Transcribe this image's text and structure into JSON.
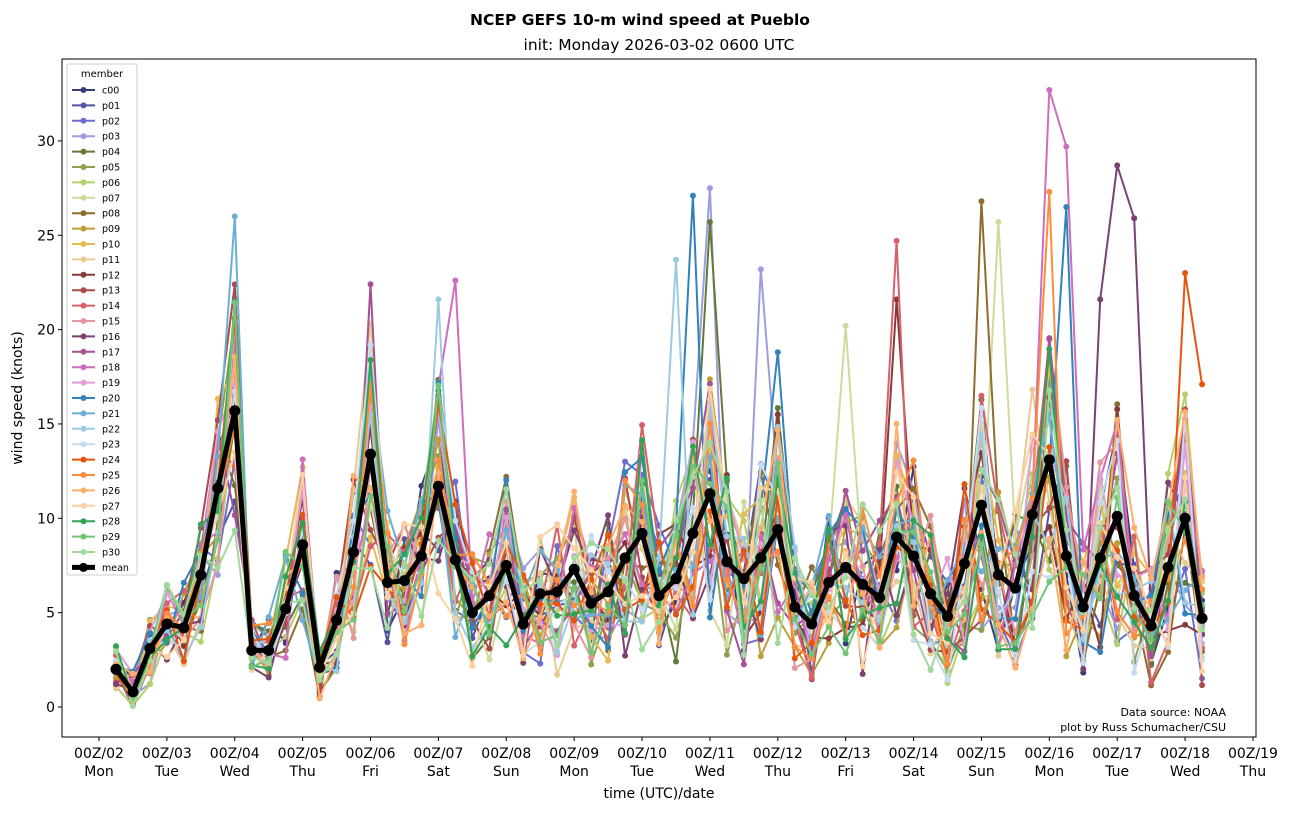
{
  "chart_data": {
    "type": "line",
    "title": "NCEP GEFS 10-m wind speed at Pueblo",
    "subtitle": "init: Monday 2026-03-02 0600 UTC",
    "xlabel": "time (UTC)/date",
    "ylabel": "wind speed (knots)",
    "ylim": [
      -1.6,
      34.2
    ],
    "xlim_days": [
      -0.55,
      17.05
    ],
    "yticks": [
      0,
      5,
      10,
      15,
      20,
      25,
      30
    ],
    "xticks": [
      {
        "day": 0,
        "label1": "00Z/02",
        "label2": "Mon"
      },
      {
        "day": 1,
        "label1": "00Z/03",
        "label2": "Tue"
      },
      {
        "day": 2,
        "label1": "00Z/04",
        "label2": "Wed"
      },
      {
        "day": 3,
        "label1": "00Z/05",
        "label2": "Thu"
      },
      {
        "day": 4,
        "label1": "00Z/06",
        "label2": "Fri"
      },
      {
        "day": 5,
        "label1": "00Z/07",
        "label2": "Sat"
      },
      {
        "day": 6,
        "label1": "00Z/08",
        "label2": "Sun"
      },
      {
        "day": 7,
        "label1": "00Z/09",
        "label2": "Mon"
      },
      {
        "day": 8,
        "label1": "00Z/10",
        "label2": "Tue"
      },
      {
        "day": 9,
        "label1": "00Z/11",
        "label2": "Wed"
      },
      {
        "day": 10,
        "label1": "00Z/12",
        "label2": "Thu"
      },
      {
        "day": 11,
        "label1": "00Z/13",
        "label2": "Fri"
      },
      {
        "day": 12,
        "label1": "00Z/14",
        "label2": "Sat"
      },
      {
        "day": 13,
        "label1": "00Z/15",
        "label2": "Sun"
      },
      {
        "day": 14,
        "label1": "00Z/16",
        "label2": "Mon"
      },
      {
        "day": 15,
        "label1": "00Z/17",
        "label2": "Tue"
      },
      {
        "day": 16,
        "label1": "00Z/18",
        "label2": "Wed"
      },
      {
        "day": 17,
        "label1": "00Z/19",
        "label2": "Thu"
      }
    ],
    "x_start_day": 0.25,
    "x_step_hours": 6,
    "legend": {
      "title": "member",
      "placement": "top-left"
    },
    "annotation": [
      "Data source: NOAA",
      "plot by Russ Schumacher/CSU"
    ],
    "grid": false,
    "mean": {
      "name": "mean",
      "color": "#000000",
      "values": [
        2.0,
        0.8,
        3.1,
        4.4,
        4.2,
        7.0,
        11.6,
        15.7,
        3.0,
        3.0,
        5.2,
        8.6,
        2.1,
        4.6,
        8.2,
        13.4,
        6.6,
        6.7,
        8.0,
        11.7,
        7.8,
        5.0,
        5.9,
        7.5,
        4.4,
        6.0,
        6.1,
        7.3,
        5.5,
        6.1,
        7.9,
        9.2,
        5.9,
        6.8,
        9.2,
        11.3,
        7.7,
        6.8,
        7.9,
        9.4,
        5.3,
        4.4,
        6.6,
        7.4,
        6.5,
        5.8,
        9.0,
        8.0,
        6.0,
        4.8,
        7.6,
        10.7,
        7.0,
        6.3,
        10.2,
        13.1,
        8.0,
        5.3,
        7.9,
        10.1,
        5.9,
        4.3,
        7.4,
        10.0,
        4.7
      ]
    },
    "series": [
      {
        "name": "c00",
        "color": "#393b79"
      },
      {
        "name": "p01",
        "color": "#5254a3"
      },
      {
        "name": "p02",
        "color": "#6b6ecf"
      },
      {
        "name": "p03",
        "color": "#9c9ede"
      },
      {
        "name": "p04",
        "color": "#637939"
      },
      {
        "name": "p05",
        "color": "#8ca252"
      },
      {
        "name": "p06",
        "color": "#b5cf6b"
      },
      {
        "name": "p07",
        "color": "#cedb9c"
      },
      {
        "name": "p08",
        "color": "#8c6d31"
      },
      {
        "name": "p09",
        "color": "#bd9e39"
      },
      {
        "name": "p10",
        "color": "#e7ba52"
      },
      {
        "name": "p11",
        "color": "#e7cb94"
      },
      {
        "name": "p12",
        "color": "#843c39"
      },
      {
        "name": "p13",
        "color": "#ad494a"
      },
      {
        "name": "p14",
        "color": "#d6616b"
      },
      {
        "name": "p15",
        "color": "#e7969c"
      },
      {
        "name": "p16",
        "color": "#7b4173"
      },
      {
        "name": "p17",
        "color": "#a55194"
      },
      {
        "name": "p18",
        "color": "#ce6dbd"
      },
      {
        "name": "p19",
        "color": "#de9ed6"
      },
      {
        "name": "p20",
        "color": "#3182bd"
      },
      {
        "name": "p21",
        "color": "#6baed6"
      },
      {
        "name": "p22",
        "color": "#9ecae1"
      },
      {
        "name": "p23",
        "color": "#c6dbef"
      },
      {
        "name": "p24",
        "color": "#e6550d"
      },
      {
        "name": "p25",
        "color": "#fd8d3c"
      },
      {
        "name": "p26",
        "color": "#fdae6b"
      },
      {
        "name": "p27",
        "color": "#fdd0a2"
      },
      {
        "name": "p28",
        "color": "#31a354"
      },
      {
        "name": "p29",
        "color": "#74c476"
      },
      {
        "name": "p30",
        "color": "#a1d99b"
      }
    ],
    "member_peaks": [
      {
        "name": "p21",
        "index": 7,
        "value": 26.0
      },
      {
        "name": "p24",
        "index": 7,
        "value": 20.6
      },
      {
        "name": "p17",
        "index": 15,
        "value": 22.4
      },
      {
        "name": "p22",
        "index": 19,
        "value": 21.6
      },
      {
        "name": "p18",
        "index": 20,
        "value": 22.6
      },
      {
        "name": "p22",
        "index": 33,
        "value": 23.7
      },
      {
        "name": "p20",
        "index": 34,
        "value": 27.1
      },
      {
        "name": "p03",
        "index": 35,
        "value": 27.5
      },
      {
        "name": "p04",
        "index": 35,
        "value": 25.7
      },
      {
        "name": "p03",
        "index": 38,
        "value": 23.2
      },
      {
        "name": "p20",
        "index": 39,
        "value": 18.8
      },
      {
        "name": "p07",
        "index": 43,
        "value": 20.2
      },
      {
        "name": "p14",
        "index": 46,
        "value": 24.7
      },
      {
        "name": "p12",
        "index": 46,
        "value": 21.6
      },
      {
        "name": "p08",
        "index": 51,
        "value": 26.8
      },
      {
        "name": "p07",
        "index": 52,
        "value": 25.7
      },
      {
        "name": "p18",
        "index": 55,
        "value": 32.7
      },
      {
        "name": "p18",
        "index": 56,
        "value": 29.7
      },
      {
        "name": "p25",
        "index": 55,
        "value": 27.3
      },
      {
        "name": "p20",
        "index": 56,
        "value": 26.5
      },
      {
        "name": "p16",
        "index": 58,
        "value": 21.6
      },
      {
        "name": "p16",
        "index": 59,
        "value": 28.7
      },
      {
        "name": "p16",
        "index": 60,
        "value": 25.9
      },
      {
        "name": "p24",
        "index": 63,
        "value": 23.0
      },
      {
        "name": "p24",
        "index": 64,
        "value": 17.1
      }
    ]
  }
}
